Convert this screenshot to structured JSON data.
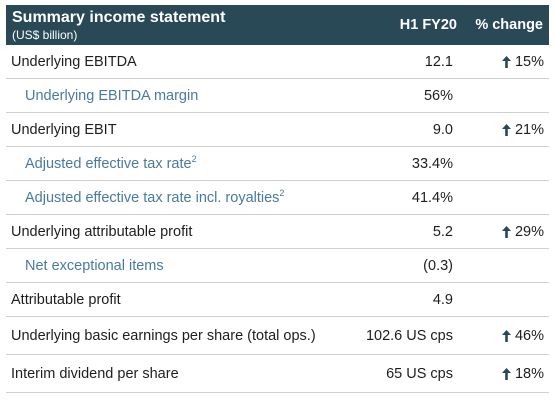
{
  "header": {
    "title": "Summary income statement",
    "subtitle": "(US$ billion)",
    "col_period": "H1 FY20",
    "col_change": "% change"
  },
  "rows": [
    {
      "label": "Underlying EBITDA",
      "sup": "",
      "value": "12.1",
      "change": "15%",
      "sub": false
    },
    {
      "label": "Underlying EBITDA margin",
      "sup": "",
      "value": "56%",
      "change": "",
      "sub": true
    },
    {
      "label": "Underlying EBIT",
      "sup": "",
      "value": "9.0",
      "change": "21%",
      "sub": false
    },
    {
      "label": "Adjusted effective tax rate",
      "sup": "2",
      "value": "33.4%",
      "change": "",
      "sub": true
    },
    {
      "label": "Adjusted effective tax rate incl. royalties",
      "sup": "2",
      "value": "41.4%",
      "change": "",
      "sub": true
    },
    {
      "label": "Underlying attributable profit",
      "sup": "",
      "value": "5.2",
      "change": "29%",
      "sub": false
    },
    {
      "label": "Net exceptional items",
      "sup": "",
      "value": "(0.3)",
      "change": "",
      "sub": true
    },
    {
      "label": "Attributable profit",
      "sup": "",
      "value": "4.9",
      "change": "",
      "sub": false
    },
    {
      "label": "Underlying basic earnings per share (total ops.)",
      "sup": "",
      "value": "102.6 US cps",
      "change": "46%",
      "sub": false
    },
    {
      "label": "Interim dividend per share",
      "sup": "",
      "value": "65 US cps",
      "change": "18%",
      "sub": false
    }
  ],
  "icons": {
    "up_arrow": "arrow-up-icon"
  },
  "colors": {
    "header_bg": "#294957",
    "header_text": "#ffffff",
    "sub_label": "#4a7aa0",
    "text": "#1e1e1e",
    "divider": "#d0d0d0"
  }
}
